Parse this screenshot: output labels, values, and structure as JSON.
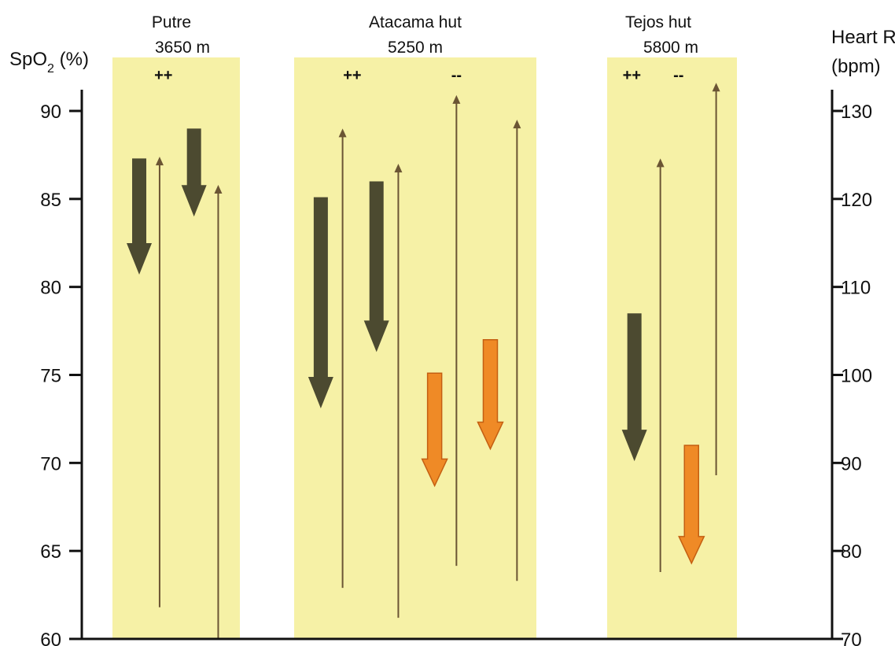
{
  "chart_data": {
    "type": "arrow",
    "title": "",
    "left_axis": {
      "label": "SpO",
      "label_subscript": "2",
      "label_suffix": " (%)",
      "min": 60,
      "max": 90,
      "ticks": [
        "90",
        "85",
        "80",
        "75",
        "70",
        "65",
        "60"
      ]
    },
    "right_axis": {
      "label_line1": "Heart Rate",
      "label_line2": "(bpm)",
      "min": 70,
      "max": 130,
      "ticks": [
        "130",
        "120",
        "110",
        "100",
        "90",
        "80",
        "70"
      ]
    },
    "sites": [
      {
        "name": "Putre",
        "altitude": "3650 m",
        "signs": [
          {
            "text": "++",
            "at": 0.4
          }
        ],
        "arrows": [
          {
            "kind": "spo2_decrease",
            "axis": "left",
            "from": 87.3,
            "to": 80.7,
            "pos": 0.21
          },
          {
            "kind": "hr_increase",
            "axis": "right",
            "from": 73.6,
            "to": 124.8,
            "pos": 0.37
          },
          {
            "kind": "spo2_decrease",
            "axis": "left",
            "from": 89.0,
            "to": 84.0,
            "pos": 0.64
          },
          {
            "kind": "hr_increase",
            "axis": "right",
            "from": 70.0,
            "to": 121.6,
            "pos": 0.83
          }
        ]
      },
      {
        "name": "Atacama hut",
        "altitude": "5250 m",
        "signs": [
          {
            "text": "++",
            "at": 0.24
          },
          {
            "text": "--",
            "at": 0.67
          }
        ],
        "arrows": [
          {
            "kind": "spo2_decrease",
            "axis": "left",
            "from": 85.1,
            "to": 73.1,
            "pos": 0.11
          },
          {
            "kind": "hr_increase",
            "axis": "right",
            "from": 75.8,
            "to": 128.0,
            "pos": 0.2
          },
          {
            "kind": "spo2_decrease",
            "axis": "left",
            "from": 86.0,
            "to": 76.3,
            "pos": 0.34
          },
          {
            "kind": "hr_increase",
            "axis": "right",
            "from": 72.4,
            "to": 124.0,
            "pos": 0.43
          },
          {
            "kind": "hr_decrease",
            "axis": "left",
            "from": 75.1,
            "to": 68.7,
            "pos": 0.58
          },
          {
            "kind": "hr_increase",
            "axis": "right",
            "from": 78.3,
            "to": 131.8,
            "pos": 0.67
          },
          {
            "kind": "hr_decrease",
            "axis": "left",
            "from": 77.0,
            "to": 70.8,
            "pos": 0.81
          },
          {
            "kind": "hr_increase",
            "axis": "right",
            "from": 76.6,
            "to": 129.0,
            "pos": 0.92
          }
        ]
      },
      {
        "name": "Tejos hut",
        "altitude": "5800 m",
        "signs": [
          {
            "text": "++",
            "at": 0.19
          },
          {
            "text": "--",
            "at": 0.55
          }
        ],
        "arrows": [
          {
            "kind": "spo2_decrease",
            "axis": "left",
            "from": 78.5,
            "to": 70.1,
            "pos": 0.21
          },
          {
            "kind": "hr_increase",
            "axis": "right",
            "from": 77.6,
            "to": 124.6,
            "pos": 0.41
          },
          {
            "kind": "hr_decrease",
            "axis": "left",
            "from": 71.0,
            "to": 64.3,
            "pos": 0.65
          },
          {
            "kind": "hr_increase",
            "axis": "right",
            "from": 88.6,
            "to": 133.2,
            "pos": 0.84
          }
        ]
      }
    ],
    "colors": {
      "band": "#f6f1a6",
      "spo2_decrease": "#4c4a30",
      "hr_increase": "#6b5534",
      "hr_decrease": "#ef8a26",
      "hr_decrease_outline": "#c45f12",
      "axis": "#111111"
    }
  }
}
